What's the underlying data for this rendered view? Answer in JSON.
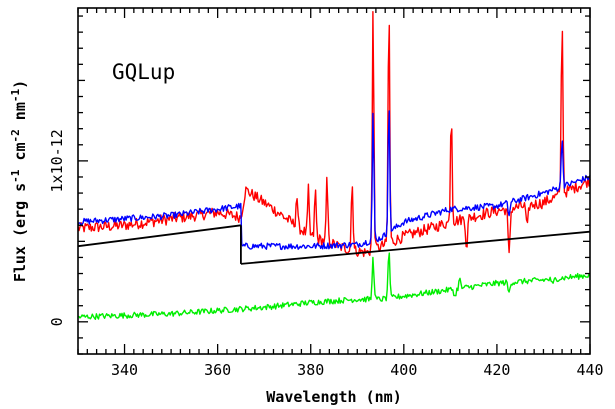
{
  "chart_data": {
    "type": "line",
    "title": "",
    "annotation": "GQLup",
    "xlabel": "Wavelength (nm)",
    "ylabel": {
      "prefix": "Flux (erg s",
      "sup1": "-1",
      "mid": " cm",
      "sup2": "-2",
      "mid2": " nm",
      "sup3": "-1",
      "suffix": ")"
    },
    "xlim": [
      330,
      440
    ],
    "ylim": [
      -0.2,
      1.95
    ],
    "y_unit": "1e-12",
    "x_ticks": [
      340,
      360,
      380,
      400,
      420,
      440
    ],
    "x_tick_labels": [
      "340",
      "360",
      "380",
      "400",
      "420",
      "440"
    ],
    "y_ticks": [
      0,
      1
    ],
    "y_tick_labels": [
      "0",
      "1x10-12"
    ],
    "grid": false,
    "legend": "none",
    "series": [
      {
        "color": "#ff0000",
        "values_kind": "noisy",
        "base": [
          [
            330,
            0.58
          ],
          [
            340,
            0.6
          ],
          [
            350,
            0.64
          ],
          [
            360,
            0.68
          ],
          [
            365,
            0.65
          ],
          [
            366,
            0.82
          ],
          [
            372,
            0.7
          ],
          [
            380,
            0.53
          ],
          [
            388,
            0.45
          ],
          [
            392,
            0.43
          ],
          [
            400,
            0.53
          ],
          [
            410,
            0.62
          ],
          [
            420,
            0.69
          ],
          [
            430,
            0.74
          ],
          [
            440,
            0.88
          ]
        ],
        "noise": 0.035,
        "peaks": [
          [
            377,
            0.2
          ],
          [
            379.5,
            0.28
          ],
          [
            381,
            0.3
          ],
          [
            383.5,
            0.38
          ],
          [
            388.9,
            0.45
          ],
          [
            393.4,
            1.5
          ],
          [
            396.8,
            1.5
          ],
          [
            410.2,
            0.7
          ],
          [
            434,
            1.1
          ]
        ],
        "dips": [
          [
            413.5,
            -0.18
          ],
          [
            422.6,
            -0.3
          ],
          [
            426.5,
            -0.15
          ]
        ]
      },
      {
        "color": "#0000ff",
        "values_kind": "noisy",
        "base": [
          [
            330,
            0.62
          ],
          [
            340,
            0.64
          ],
          [
            350,
            0.66
          ],
          [
            360,
            0.7
          ],
          [
            365,
            0.72
          ],
          [
            365.2,
            0.47
          ],
          [
            370,
            0.47
          ],
          [
            380,
            0.47
          ],
          [
            390,
            0.48
          ],
          [
            395,
            0.52
          ],
          [
            400,
            0.62
          ],
          [
            410,
            0.7
          ],
          [
            420,
            0.72
          ],
          [
            430,
            0.8
          ],
          [
            440,
            0.9
          ]
        ],
        "noise": 0.02,
        "peaks": [
          [
            393.4,
            0.8
          ],
          [
            396.8,
            0.82
          ],
          [
            434,
            0.32
          ]
        ],
        "dips": [
          [
            422.6,
            -0.08
          ]
        ]
      },
      {
        "color": "#00ee00",
        "values_kind": "noisy",
        "base": [
          [
            330,
            0.03
          ],
          [
            340,
            0.04
          ],
          [
            350,
            0.05
          ],
          [
            360,
            0.07
          ],
          [
            370,
            0.09
          ],
          [
            380,
            0.12
          ],
          [
            390,
            0.14
          ],
          [
            395,
            0.14
          ],
          [
            400,
            0.16
          ],
          [
            410,
            0.2
          ],
          [
            420,
            0.24
          ],
          [
            430,
            0.26
          ],
          [
            440,
            0.29
          ]
        ],
        "noise": 0.018,
        "peaks": [
          [
            393.4,
            0.28
          ],
          [
            396.8,
            0.32
          ],
          [
            412,
            0.06
          ]
        ],
        "dips": [
          [
            411,
            -0.05
          ],
          [
            422.6,
            -0.07
          ],
          [
            432,
            -0.04
          ]
        ]
      },
      {
        "color": "#000000",
        "values_kind": "piecewise",
        "segments": [
          [
            [
              330,
              0.47
            ],
            [
              365,
              0.6
            ]
          ],
          [
            [
              365,
              0.6
            ],
            [
              365,
              0.36
            ]
          ],
          [
            [
              365,
              0.36
            ],
            [
              440,
              0.56
            ]
          ]
        ]
      }
    ]
  },
  "colors": {
    "axis": "#000000",
    "background": "#ffffff"
  }
}
